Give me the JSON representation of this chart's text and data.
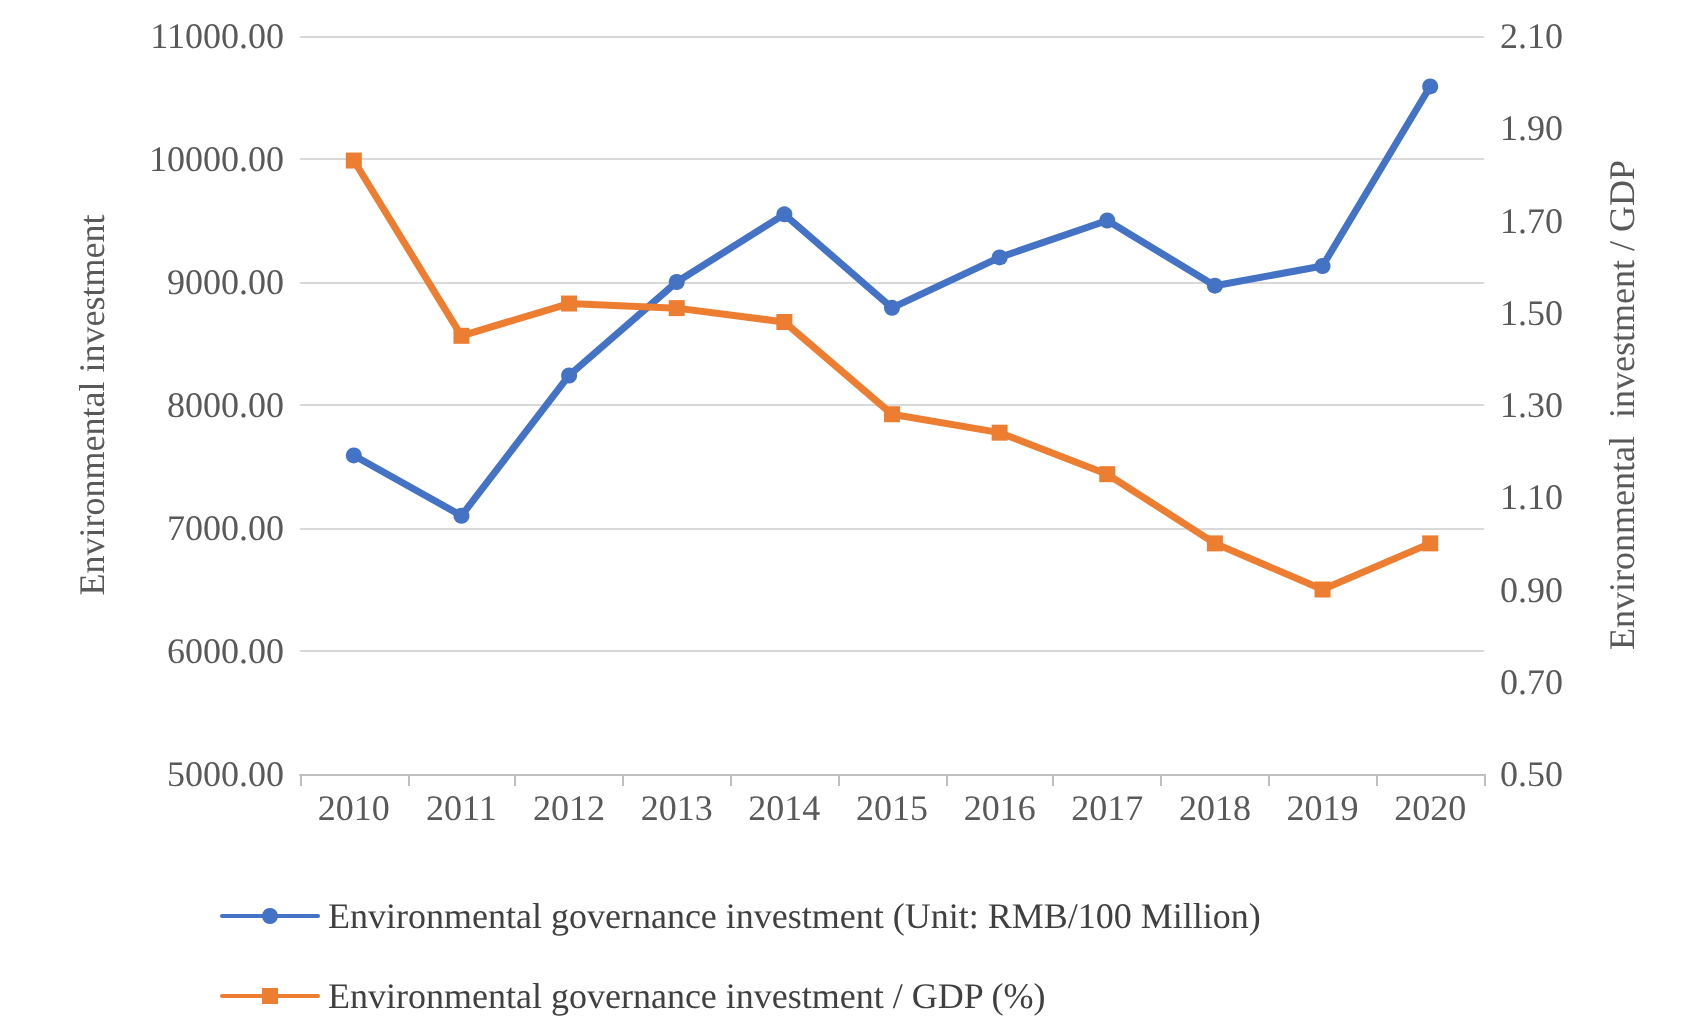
{
  "chart_data": {
    "type": "line",
    "ylabel": "Environmental investment",
    "y2label": "Environmental  investment / GDP",
    "categories": [
      "2010",
      "2011",
      "2012",
      "2013",
      "2014",
      "2015",
      "2016",
      "2017",
      "2018",
      "2019",
      "2020"
    ],
    "series": [
      {
        "name": "Environmental governance investment (Unit: RMB/100 Million)",
        "color": "#4472c4",
        "marker": "circle",
        "values": [
          7590,
          7100,
          8240,
          9000,
          9550,
          8790,
          9200,
          9500,
          8970,
          9130,
          10590
        ]
      },
      {
        "name": "Environmental governance investment / GDP (%)",
        "color": "#ed7d31",
        "marker": "square",
        "axis": "y2",
        "values": [
          1.83,
          1.45,
          1.52,
          1.51,
          1.48,
          1.28,
          1.24,
          1.15,
          1.0,
          0.9,
          1.0
        ]
      }
    ],
    "ylim": [
      5000,
      11000
    ],
    "yticks": [
      {
        "value": 5000,
        "label": "5000.00"
      },
      {
        "value": 6000,
        "label": "6000.00"
      },
      {
        "value": 7000,
        "label": "7000.00"
      },
      {
        "value": 8000,
        "label": "8000.00"
      },
      {
        "value": 9000,
        "label": "9000.00"
      },
      {
        "value": 10000,
        "label": "10000.00"
      },
      {
        "value": 11000,
        "label": "11000.00"
      }
    ],
    "y2lim": [
      0.5,
      2.1
    ],
    "y2ticks": [
      {
        "value": 0.5,
        "label": "0.50"
      },
      {
        "value": 0.7,
        "label": "0.70"
      },
      {
        "value": 0.9,
        "label": "0.90"
      },
      {
        "value": 1.1,
        "label": "1.10"
      },
      {
        "value": 1.3,
        "label": "1.30"
      },
      {
        "value": 1.5,
        "label": "1.50"
      },
      {
        "value": 1.7,
        "label": "1.70"
      },
      {
        "value": 1.9,
        "label": "1.90"
      },
      {
        "value": 2.1,
        "label": "2.10"
      }
    ],
    "grid": "y",
    "legend": "bottom",
    "line_style": "solid"
  }
}
